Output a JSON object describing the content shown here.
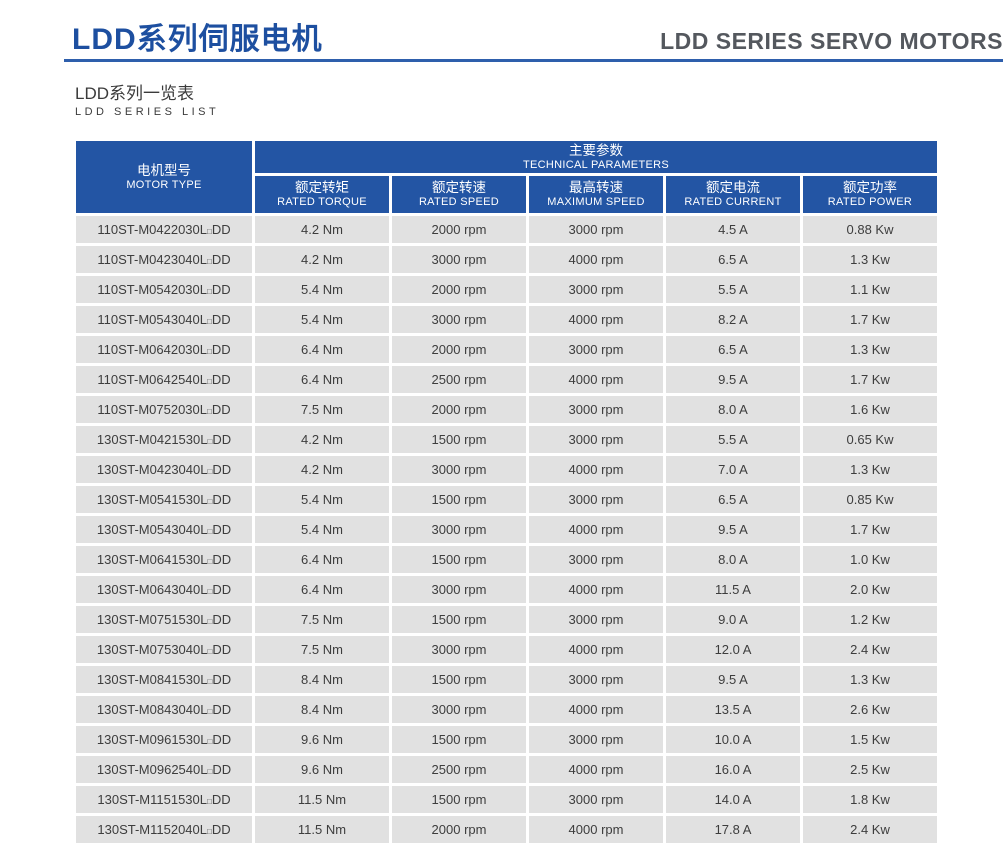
{
  "header": {
    "title_cn": "LDD系列伺服电机",
    "title_en": "LDD SERIES SERVO MOTORS"
  },
  "subtitle": {
    "cn": "LDD系列一览表",
    "en": "LDD SERIES LIST"
  },
  "colors": {
    "title_blue": "#1d4fa0",
    "rule_blue": "#2e5fac",
    "table_header_blue": "#2355a4",
    "row_gray": "#e1e1e1",
    "title_en_gray": "#54585e",
    "body_text": "#3b3b3b"
  },
  "table": {
    "motor_col": {
      "cn": "电机型号",
      "en": "MOTOR TYPE"
    },
    "params_group": {
      "cn": "主要参数",
      "en": "TECHNICAL PARAMETERS"
    },
    "columns": [
      {
        "cn": "额定转矩",
        "en": "RATED TORQUE"
      },
      {
        "cn": "额定转速",
        "en": "RATED SPEED"
      },
      {
        "cn": "最高转速",
        "en": "MAXIMUM SPEED"
      },
      {
        "cn": "额定电流",
        "en": "RATED CURRENT"
      },
      {
        "cn": "额定功率",
        "en": "RATED POWER"
      }
    ],
    "rows": [
      [
        "110ST-M0422030L□DD",
        "4.2 Nm",
        "2000 rpm",
        "3000 rpm",
        "4.5 A",
        "0.88 Kw"
      ],
      [
        "110ST-M0423040L□DD",
        "4.2 Nm",
        "3000 rpm",
        "4000 rpm",
        "6.5 A",
        "1.3 Kw"
      ],
      [
        "110ST-M0542030L□DD",
        "5.4 Nm",
        "2000 rpm",
        "3000 rpm",
        "5.5 A",
        "1.1 Kw"
      ],
      [
        "110ST-M0543040L□DD",
        "5.4 Nm",
        "3000 rpm",
        "4000 rpm",
        "8.2 A",
        "1.7 Kw"
      ],
      [
        "110ST-M0642030L□DD",
        "6.4 Nm",
        "2000 rpm",
        "3000 rpm",
        "6.5 A",
        "1.3 Kw"
      ],
      [
        "110ST-M0642540L□DD",
        "6.4 Nm",
        "2500 rpm",
        "4000 rpm",
        "9.5 A",
        "1.7 Kw"
      ],
      [
        "110ST-M0752030L□DD",
        "7.5 Nm",
        "2000 rpm",
        "3000 rpm",
        "8.0 A",
        "1.6 Kw"
      ],
      [
        "130ST-M0421530L□DD",
        "4.2 Nm",
        "1500 rpm",
        "3000 rpm",
        "5.5 A",
        "0.65 Kw"
      ],
      [
        "130ST-M0423040L□DD",
        "4.2 Nm",
        "3000 rpm",
        "4000 rpm",
        "7.0 A",
        "1.3 Kw"
      ],
      [
        "130ST-M0541530L□DD",
        "5.4 Nm",
        "1500 rpm",
        "3000 rpm",
        "6.5 A",
        "0.85 Kw"
      ],
      [
        "130ST-M0543040L□DD",
        "5.4 Nm",
        "3000 rpm",
        "4000 rpm",
        "9.5 A",
        "1.7 Kw"
      ],
      [
        "130ST-M0641530L□DD",
        "6.4 Nm",
        "1500 rpm",
        "3000 rpm",
        "8.0 A",
        "1.0 Kw"
      ],
      [
        "130ST-M0643040L□DD",
        "6.4 Nm",
        "3000 rpm",
        "4000 rpm",
        "11.5 A",
        "2.0 Kw"
      ],
      [
        "130ST-M0751530L□DD",
        "7.5 Nm",
        "1500 rpm",
        "3000 rpm",
        "9.0 A",
        "1.2 Kw"
      ],
      [
        "130ST-M0753040L□DD",
        "7.5 Nm",
        "3000 rpm",
        "4000 rpm",
        "12.0 A",
        "2.4 Kw"
      ],
      [
        "130ST-M0841530L□DD",
        "8.4 Nm",
        "1500 rpm",
        "3000 rpm",
        "9.5 A",
        "1.3 Kw"
      ],
      [
        "130ST-M0843040L□DD",
        "8.4 Nm",
        "3000 rpm",
        "4000 rpm",
        "13.5 A",
        "2.6 Kw"
      ],
      [
        "130ST-M0961530L□DD",
        "9.6 Nm",
        "1500 rpm",
        "3000 rpm",
        "10.0 A",
        "1.5 Kw"
      ],
      [
        "130ST-M0962540L□DD",
        "9.6 Nm",
        "2500 rpm",
        "4000 rpm",
        "16.0 A",
        "2.5 Kw"
      ],
      [
        "130ST-M1151530L□DD",
        "11.5 Nm",
        "1500 rpm",
        "3000 rpm",
        "14.0 A",
        "1.8 Kw"
      ],
      [
        "130ST-M1152040L□DD",
        "11.5 Nm",
        "2000 rpm",
        "4000 rpm",
        "17.8 A",
        "2.4 Kw"
      ]
    ]
  }
}
